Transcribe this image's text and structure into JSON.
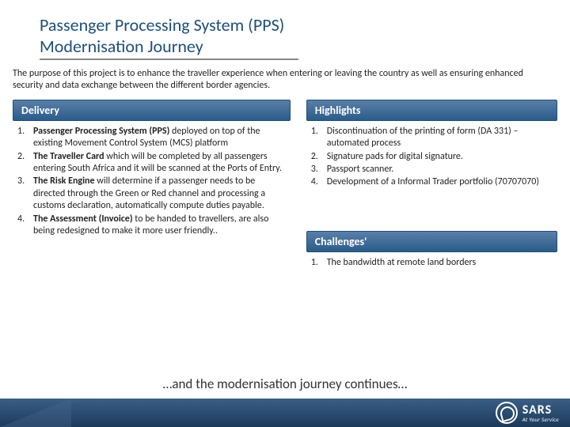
{
  "title": {
    "line1": "Passenger Processing System (PPS)",
    "line2": "Modernisation Journey"
  },
  "intro": "The purpose of this project is to enhance the traveller experience when entering or leaving the country as well as ensuring enhanced security and data exchange between the different border agencies.",
  "delivery": {
    "header": "Delivery",
    "items": [
      {
        "num": "1.",
        "bold": "Passenger Processing System (PPS) ",
        "rest": "deployed on top of the existing Movement Control System (MCS) platform"
      },
      {
        "num": "2.",
        "bold": "The Traveller Card ",
        "rest": "which will be completed by all passengers entering South Africa and it will be scanned at the Ports of Entry."
      },
      {
        "num": "3.",
        "bold": "The Risk Engine ",
        "rest": "will determine if a passenger needs to be directed through the Green or Red channel and processing a customs declaration, automatically compute duties payable."
      },
      {
        "num": "4.",
        "bold": "The Assessment (Invoice) ",
        "rest": "to be handed to travellers, are also being redesigned to make it more user friendly.."
      }
    ]
  },
  "highlights": {
    "header": "Highlights",
    "items": [
      {
        "num": "1.",
        "text": "Discontinuation of the printing of form (DA 331) – automated process"
      },
      {
        "num": "2.",
        "text": "Signature pads for digital signature."
      },
      {
        "num": "3.",
        "text": "Passport scanner."
      },
      {
        "num": "4.",
        "text": "Development of a Informal Trader portfolio (70707070)"
      }
    ]
  },
  "challenges": {
    "header": "Challenges'",
    "items": [
      {
        "num": "1.",
        "text": "The bandwidth at remote land borders"
      }
    ]
  },
  "tagline": "…and the modernisation journey continues…",
  "logo": {
    "text": "SARS",
    "sub": "At Your Service"
  },
  "colors": {
    "title_color": "#1f4e79",
    "header_bg_top": "#5a7fa8",
    "header_bg_bottom": "#2b5c8a",
    "footer_bg_top": "#3a5f85",
    "footer_bg_bottom": "#1b3a5a"
  }
}
